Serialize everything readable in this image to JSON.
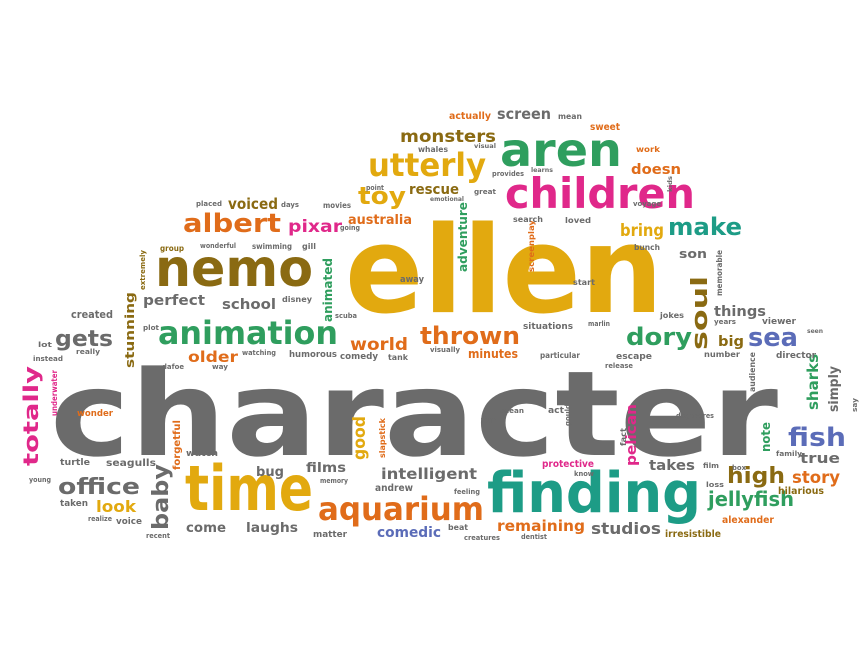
{
  "palette": {
    "gray": "#6b6b6b",
    "yellow": "#e2a90f",
    "green": "#2f9e5e",
    "teal": "#1d9c86",
    "pink": "#e0288a",
    "orange": "#e06c1a",
    "olive": "#8a6a12",
    "purple": "#5b6cb8",
    "magenta": "#c72a7a"
  },
  "words": [
    {
      "text": "character",
      "color": "gray"
    },
    {
      "text": "ellen",
      "color": "yellow"
    },
    {
      "text": "finding",
      "color": "teal"
    },
    {
      "text": "time",
      "color": "yellow"
    },
    {
      "text": "nemo",
      "color": "olive"
    },
    {
      "text": "children",
      "color": "pink"
    },
    {
      "text": "aren",
      "color": "green"
    },
    {
      "text": "utterly",
      "color": "yellow"
    },
    {
      "text": "animation",
      "color": "green"
    },
    {
      "text": "aquarium",
      "color": "orange"
    },
    {
      "text": "albert",
      "color": "orange"
    },
    {
      "text": "thrown",
      "color": "orange"
    },
    {
      "text": "dory",
      "color": "green"
    },
    {
      "text": "make",
      "color": "teal"
    },
    {
      "text": "toy",
      "color": "yellow"
    },
    {
      "text": "fish",
      "color": "purple"
    },
    {
      "text": "sea",
      "color": "purple"
    },
    {
      "text": "soul",
      "color": "olive"
    },
    {
      "text": "totally",
      "color": "pink"
    },
    {
      "text": "office",
      "color": "gray"
    },
    {
      "text": "baby",
      "color": "gray"
    },
    {
      "text": "gets",
      "color": "gray"
    },
    {
      "text": "monsters",
      "color": "olive"
    },
    {
      "text": "screen",
      "color": "gray"
    },
    {
      "text": "high",
      "color": "olive"
    },
    {
      "text": "story",
      "color": "orange"
    },
    {
      "text": "jellyfish",
      "color": "green"
    },
    {
      "text": "pixar",
      "color": "pink"
    },
    {
      "text": "voiced",
      "color": "olive"
    },
    {
      "text": "australia",
      "color": "orange"
    },
    {
      "text": "rescue",
      "color": "olive"
    },
    {
      "text": "bring",
      "color": "yellow"
    },
    {
      "text": "doesn",
      "color": "orange"
    },
    {
      "text": "good",
      "color": "yellow"
    },
    {
      "text": "world",
      "color": "orange"
    },
    {
      "text": "older",
      "color": "orange"
    },
    {
      "text": "perfect",
      "color": "gray"
    },
    {
      "text": "school",
      "color": "gray"
    },
    {
      "text": "look",
      "color": "yellow"
    },
    {
      "text": "intelligent",
      "color": "gray"
    },
    {
      "text": "films",
      "color": "gray"
    },
    {
      "text": "bug",
      "color": "gray"
    },
    {
      "text": "come",
      "color": "gray"
    },
    {
      "text": "laughs",
      "color": "gray"
    },
    {
      "text": "comedic",
      "color": "purple"
    },
    {
      "text": "remaining",
      "color": "orange"
    },
    {
      "text": "studios",
      "color": "gray"
    },
    {
      "text": "takes",
      "color": "gray"
    },
    {
      "text": "pelican",
      "color": "pink"
    },
    {
      "text": "things",
      "color": "gray"
    },
    {
      "text": "true",
      "color": "gray"
    },
    {
      "text": "sharks",
      "color": "green"
    },
    {
      "text": "simply",
      "color": "gray"
    },
    {
      "text": "note",
      "color": "green"
    },
    {
      "text": "big",
      "color": "olive"
    },
    {
      "text": "minutes",
      "color": "orange"
    },
    {
      "text": "stunning",
      "color": "olive"
    },
    {
      "text": "animated",
      "color": "green"
    },
    {
      "text": "adventure",
      "color": "green"
    },
    {
      "text": "son",
      "color": "gray"
    },
    {
      "text": "sweet",
      "color": "orange"
    },
    {
      "text": "actually",
      "color": "orange"
    },
    {
      "text": "created",
      "color": "gray"
    },
    {
      "text": "forgetful",
      "color": "orange"
    },
    {
      "text": "andrew",
      "color": "gray"
    },
    {
      "text": "protective",
      "color": "pink"
    },
    {
      "text": "hilarious",
      "color": "olive"
    },
    {
      "text": "alexander",
      "color": "orange"
    },
    {
      "text": "irresistible",
      "color": "olive"
    },
    {
      "text": "seagulls",
      "color": "gray"
    },
    {
      "text": "watch",
      "color": "gray"
    },
    {
      "text": "humorous",
      "color": "gray"
    },
    {
      "text": "comedy",
      "color": "gray"
    },
    {
      "text": "situations",
      "color": "gray"
    },
    {
      "text": "memorable",
      "color": "gray"
    },
    {
      "text": "director",
      "color": "gray"
    },
    {
      "text": "viewer",
      "color": "gray"
    },
    {
      "text": "escape",
      "color": "gray"
    },
    {
      "text": "number",
      "color": "gray"
    },
    {
      "text": "audience",
      "color": "gray"
    },
    {
      "text": "underwater",
      "color": "pink"
    },
    {
      "text": "wonder",
      "color": "orange"
    },
    {
      "text": "turtle",
      "color": "gray"
    },
    {
      "text": "young",
      "color": "gray"
    },
    {
      "text": "taken",
      "color": "gray"
    },
    {
      "text": "realize",
      "color": "gray"
    },
    {
      "text": "voice",
      "color": "gray"
    },
    {
      "text": "recent",
      "color": "gray"
    },
    {
      "text": "matter",
      "color": "gray"
    },
    {
      "text": "memory",
      "color": "gray"
    },
    {
      "text": "beat",
      "color": "gray"
    },
    {
      "text": "creatures",
      "color": "gray"
    },
    {
      "text": "dentist",
      "color": "gray"
    },
    {
      "text": "feeling",
      "color": "gray"
    },
    {
      "text": "slapstick",
      "color": "orange"
    },
    {
      "text": "far",
      "color": "gray"
    },
    {
      "text": "act",
      "color": "gray"
    },
    {
      "text": "gould",
      "color": "gray"
    },
    {
      "text": "fact",
      "color": "gray"
    },
    {
      "text": "ocean",
      "color": "gray"
    },
    {
      "text": "know",
      "color": "gray"
    },
    {
      "text": "loss",
      "color": "gray"
    },
    {
      "text": "film",
      "color": "gray"
    },
    {
      "text": "family",
      "color": "gray"
    },
    {
      "text": "degeneres",
      "color": "gray"
    },
    {
      "text": "say",
      "color": "gray"
    },
    {
      "text": "particular",
      "color": "gray"
    },
    {
      "text": "visually",
      "color": "gray"
    },
    {
      "text": "release",
      "color": "gray"
    },
    {
      "text": "tank",
      "color": "gray"
    },
    {
      "text": "scuba",
      "color": "gray"
    },
    {
      "text": "marlin",
      "color": "gray"
    },
    {
      "text": "start",
      "color": "gray"
    },
    {
      "text": "away",
      "color": "gray"
    },
    {
      "text": "jokes",
      "color": "gray"
    },
    {
      "text": "years",
      "color": "gray"
    },
    {
      "text": "screenplay",
      "color": "orange"
    },
    {
      "text": "swimming",
      "color": "gray"
    },
    {
      "text": "gill",
      "color": "gray"
    },
    {
      "text": "disney",
      "color": "gray"
    },
    {
      "text": "extremely",
      "color": "olive"
    },
    {
      "text": "group",
      "color": "olive"
    },
    {
      "text": "wonderful",
      "color": "gray"
    },
    {
      "text": "placed",
      "color": "gray"
    },
    {
      "text": "days",
      "color": "gray"
    },
    {
      "text": "movies",
      "color": "gray"
    },
    {
      "text": "going",
      "color": "gray"
    },
    {
      "text": "point",
      "color": "gray"
    },
    {
      "text": "emotional",
      "color": "gray"
    },
    {
      "text": "great",
      "color": "gray"
    },
    {
      "text": "provides",
      "color": "gray"
    },
    {
      "text": "learns",
      "color": "gray"
    },
    {
      "text": "visual",
      "color": "gray"
    },
    {
      "text": "whales",
      "color": "gray"
    },
    {
      "text": "mean",
      "color": "gray"
    },
    {
      "text": "work",
      "color": "orange"
    },
    {
      "text": "voyage",
      "color": "gray"
    },
    {
      "text": "kids",
      "color": "gray"
    },
    {
      "text": "search",
      "color": "gray"
    },
    {
      "text": "loved",
      "color": "gray"
    },
    {
      "text": "bunch",
      "color": "gray"
    },
    {
      "text": "plot",
      "color": "gray"
    },
    {
      "text": "lot",
      "color": "gray"
    },
    {
      "text": "really",
      "color": "gray"
    },
    {
      "text": "instead",
      "color": "gray"
    },
    {
      "text": "dafoe",
      "color": "gray"
    },
    {
      "text": "way",
      "color": "gray"
    },
    {
      "text": "watching",
      "color": "gray"
    },
    {
      "text": "box",
      "color": "gray"
    },
    {
      "text": "seen",
      "color": "gray"
    }
  ]
}
